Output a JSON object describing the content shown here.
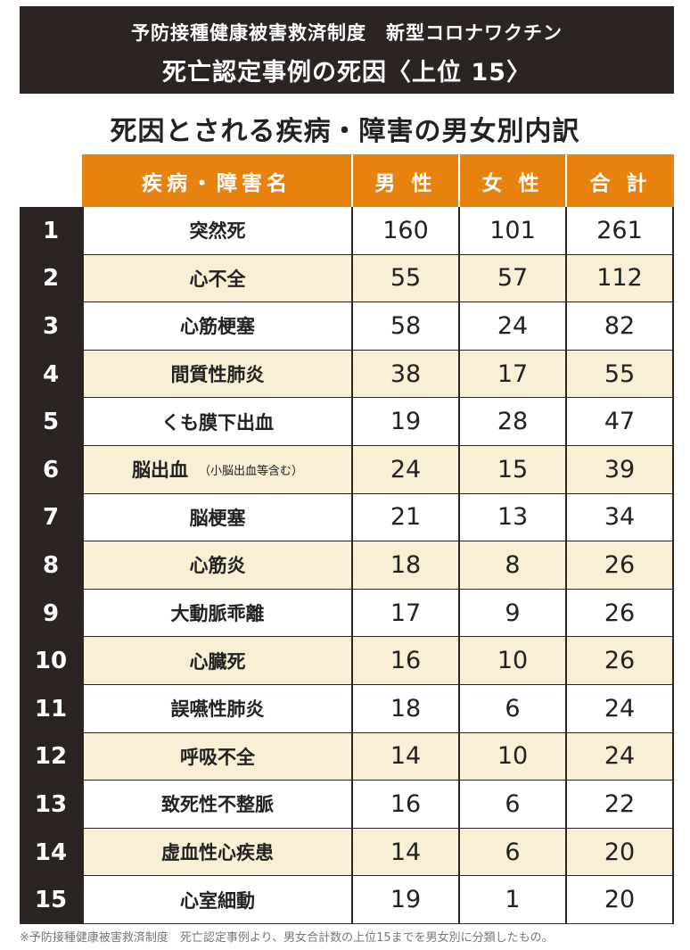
{
  "header": {
    "line1": "予防接種健康被害救済制度　新型コロナワクチン",
    "line2": "死亡認定事例の死因〈上位 15〉"
  },
  "subtitle": "死因とされる疾病・障害の男女別内訳",
  "columns": {
    "name": "疾病・障害名",
    "male": "男 性",
    "female": "女 性",
    "total": "合 計"
  },
  "chart_data": {
    "type": "table",
    "columns": [
      "疾病・障害名",
      "男 性",
      "女 性",
      "合 計"
    ],
    "rows": [
      {
        "rank": "1",
        "name": "突然死",
        "note": "",
        "male": 160,
        "female": 101,
        "total": 261
      },
      {
        "rank": "2",
        "name": "心不全",
        "note": "",
        "male": 55,
        "female": 57,
        "total": 112
      },
      {
        "rank": "3",
        "name": "心筋梗塞",
        "note": "",
        "male": 58,
        "female": 24,
        "total": 82
      },
      {
        "rank": "4",
        "name": "間質性肺炎",
        "note": "",
        "male": 38,
        "female": 17,
        "total": 55
      },
      {
        "rank": "5",
        "name": "くも膜下出血",
        "note": "",
        "male": 19,
        "female": 28,
        "total": 47
      },
      {
        "rank": "6",
        "name": "脳出血",
        "note": "（小脳出血等含む）",
        "male": 24,
        "female": 15,
        "total": 39
      },
      {
        "rank": "7",
        "name": "脳梗塞",
        "note": "",
        "male": 21,
        "female": 13,
        "total": 34
      },
      {
        "rank": "8",
        "name": "心筋炎",
        "note": "",
        "male": 18,
        "female": 8,
        "total": 26
      },
      {
        "rank": "9",
        "name": "大動脈乖離",
        "note": "",
        "male": 17,
        "female": 9,
        "total": 26
      },
      {
        "rank": "10",
        "name": "心臓死",
        "note": "",
        "male": 16,
        "female": 10,
        "total": 26
      },
      {
        "rank": "11",
        "name": "誤嚥性肺炎",
        "note": "",
        "male": 18,
        "female": 6,
        "total": 24
      },
      {
        "rank": "12",
        "name": "呼吸不全",
        "note": "",
        "male": 14,
        "female": 10,
        "total": 24
      },
      {
        "rank": "13",
        "name": "致死性不整脈",
        "note": "",
        "male": 16,
        "female": 6,
        "total": 22
      },
      {
        "rank": "14",
        "name": "虚血性心疾患",
        "note": "",
        "male": 14,
        "female": 6,
        "total": 20
      },
      {
        "rank": "15",
        "name": "心室細動",
        "note": "",
        "male": 19,
        "female": 1,
        "total": 20
      }
    ]
  },
  "colors": {
    "header_bg": "#2b2422",
    "column_header_bg": "#e8820e",
    "alt_row_bg": "#f8efd4",
    "rank_bg": "#2b2422"
  },
  "footnote": "※予防接種健康被害救済制度　死亡認定事例より、男女合計数の上位15までを男女別に分類したもの。"
}
